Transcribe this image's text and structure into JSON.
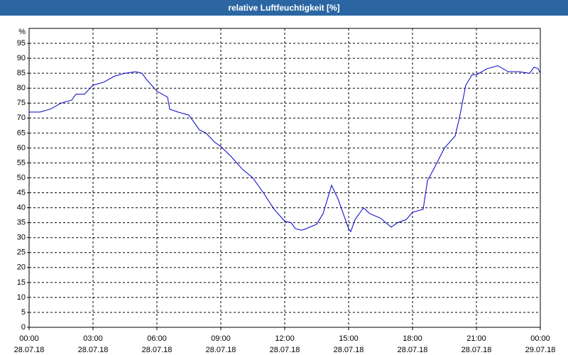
{
  "chart_data": {
    "type": "line",
    "title": "relative Luftfeuchtigkeit [%]",
    "ylabel": "%",
    "x": [
      0,
      0.5,
      1,
      1.5,
      2,
      2.2,
      2.6,
      3,
      3.5,
      4,
      4.5,
      5,
      5.3,
      5.5,
      6,
      6.5,
      6.6,
      7,
      7.5,
      8,
      8.3,
      8.7,
      9,
      9.5,
      10,
      10.5,
      11,
      11.5,
      12,
      12.3,
      12.5,
      12.8,
      13,
      13.5,
      13.8,
      14.2,
      14.5,
      14.8,
      15,
      15.1,
      15.3,
      15.7,
      16,
      16.5,
      17,
      17.3,
      17.7,
      18,
      18.5,
      18.7,
      19,
      19.5,
      20,
      20.2,
      20.5,
      20.8,
      21,
      21.5,
      22,
      22.5,
      23,
      23.5,
      23.7,
      23.9,
      24
    ],
    "values": [
      72,
      72,
      73,
      75,
      76,
      78,
      78,
      81,
      82,
      84,
      85,
      85.5,
      85,
      83,
      79,
      77,
      73,
      72,
      71,
      66,
      65,
      62,
      60.5,
      57,
      53,
      50,
      45,
      39.5,
      35.5,
      35,
      33,
      32.5,
      33,
      34.5,
      38,
      47.5,
      43,
      37,
      33,
      32,
      36,
      40,
      38,
      36.5,
      33.5,
      35,
      36,
      38.5,
      39.5,
      49,
      53,
      60,
      64,
      70,
      81,
      84.5,
      84.5,
      86.5,
      87.5,
      85.5,
      85.5,
      85,
      87,
      86.5,
      85
    ],
    "color": "#0000c8",
    "xlim": [
      0,
      24
    ],
    "xticks": [
      {
        "value": 0,
        "label": "00:00\n28.07.18"
      },
      {
        "value": 3,
        "label": "03:00\n28.07.18"
      },
      {
        "value": 6,
        "label": "06:00\n28.07.18"
      },
      {
        "value": 9,
        "label": "09:00\n28.07.18"
      },
      {
        "value": 12,
        "label": "12:00\n28.07.18"
      },
      {
        "value": 15,
        "label": "15:00\n28.07.18"
      },
      {
        "value": 18,
        "label": "18:00\n28.07.18"
      },
      {
        "value": 21,
        "label": "21:00\n28.07.18"
      },
      {
        "value": 24,
        "label": "00:00\n29.07.18"
      }
    ],
    "ylim": [
      0,
      100
    ],
    "yticks": [
      0,
      5,
      10,
      15,
      20,
      25,
      30,
      35,
      40,
      45,
      50,
      55,
      60,
      65,
      70,
      75,
      80,
      85,
      90,
      95
    ],
    "grid": true
  }
}
